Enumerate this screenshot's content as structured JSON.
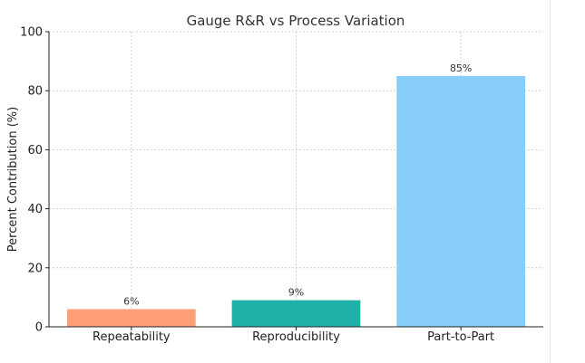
{
  "chart_data": {
    "type": "bar",
    "title": "Gauge R&R vs Process Variation",
    "xlabel": "",
    "ylabel": "Percent Contribution (%)",
    "categories": [
      "Repeatability",
      "Reproducibility",
      "Part-to-Part"
    ],
    "values": [
      6,
      9,
      85
    ],
    "value_labels": [
      "6%",
      "9%",
      "85%"
    ],
    "colors": [
      "#FFA07A",
      "#20B2AA",
      "#87CEFA"
    ],
    "ylim": [
      0,
      100
    ],
    "yticks": [
      0,
      20,
      40,
      60,
      80,
      100
    ],
    "ytick_labels": [
      "0",
      "20",
      "40",
      "60",
      "80",
      "100"
    ],
    "grid": true,
    "grid_color": "#c8c8c8"
  }
}
